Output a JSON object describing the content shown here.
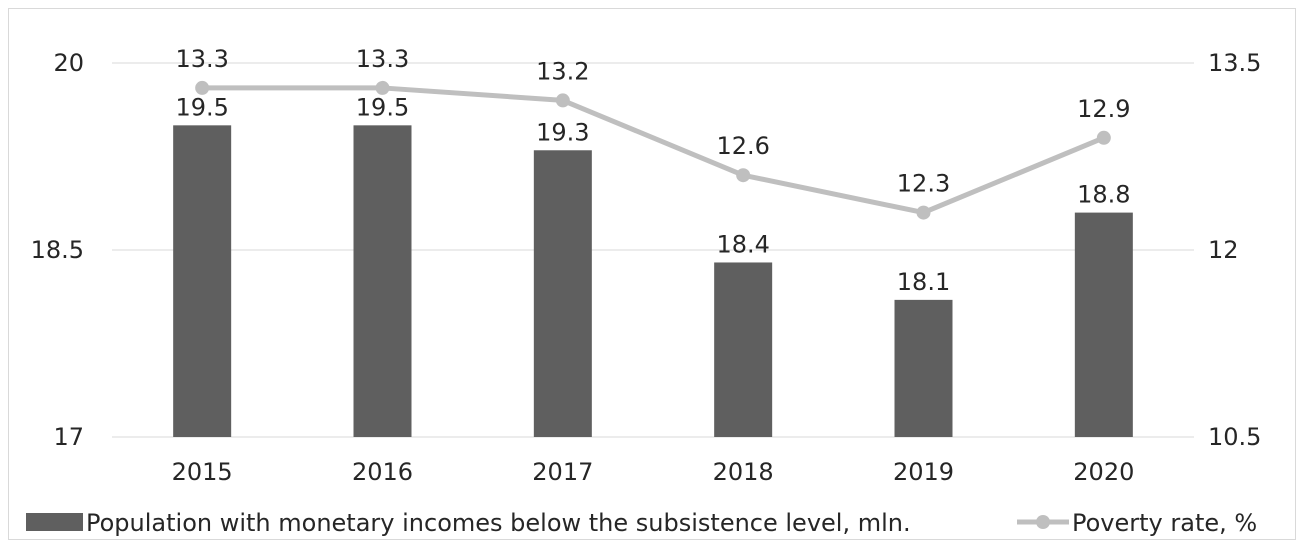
{
  "chart_data": {
    "type": "bar",
    "categories": [
      "2015",
      "2016",
      "2017",
      "2018",
      "2019",
      "2020"
    ],
    "series": [
      {
        "name": "Population with monetary incomes below the subsistence level, mln.",
        "type": "bar",
        "axis": "left",
        "values": [
          19.5,
          19.5,
          19.3,
          18.4,
          18.1,
          18.8
        ],
        "labels": [
          "19.5",
          "19.5",
          "19.3",
          "18.4",
          "18.1",
          "18.8"
        ],
        "color": "#5f5f5f"
      },
      {
        "name": "Poverty rate, %",
        "type": "line",
        "axis": "right",
        "values": [
          13.3,
          13.3,
          13.2,
          12.6,
          12.3,
          12.9
        ],
        "labels": [
          "13.3",
          "13.3",
          "13.2",
          "12.6",
          "12.3",
          "12.9"
        ],
        "color": "#bfbfbf"
      }
    ],
    "y_left": {
      "range": [
        17,
        20
      ],
      "ticks": [
        17,
        18.5,
        20
      ],
      "tick_labels": [
        "17",
        "18.5",
        "20"
      ]
    },
    "y_right": {
      "range": [
        10.5,
        13.5
      ],
      "ticks": [
        10.5,
        12,
        13.5
      ],
      "tick_labels": [
        "10.5",
        "12",
        "13.5"
      ]
    },
    "grid": true,
    "legend": "bottom",
    "title": "",
    "xlabel": "",
    "ylabel": ""
  }
}
